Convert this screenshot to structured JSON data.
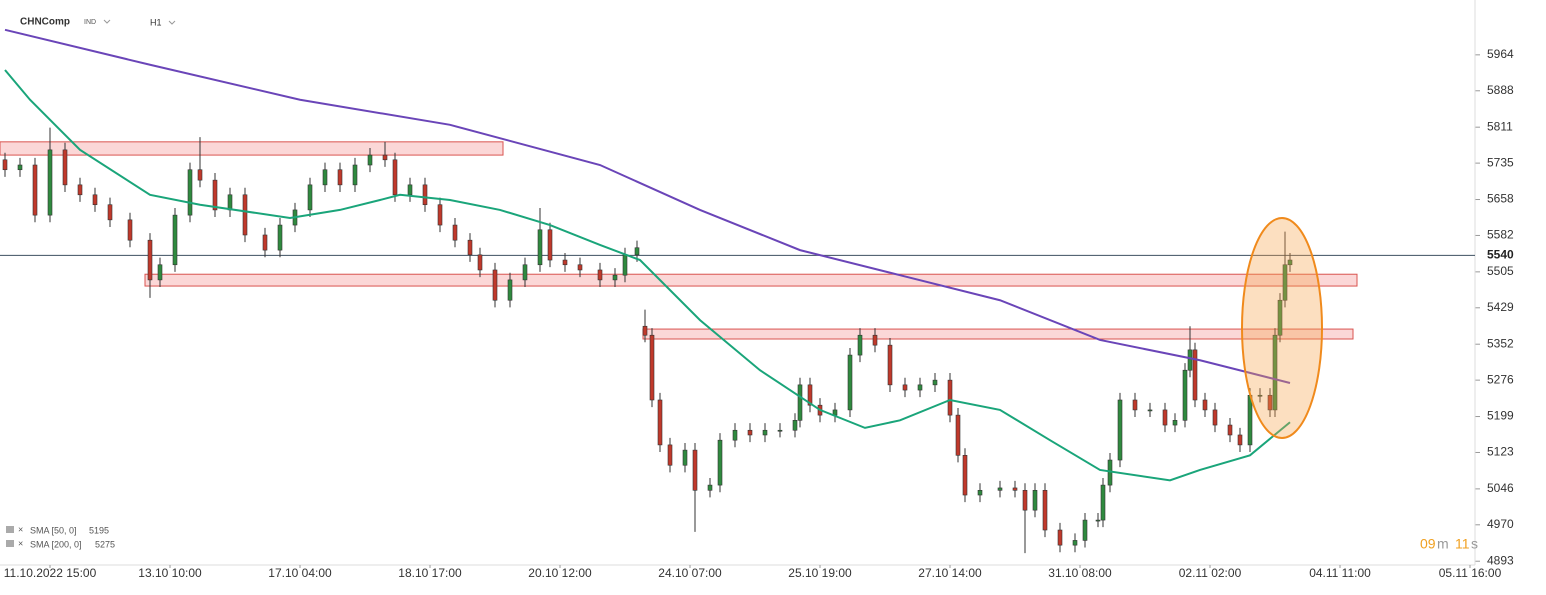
{
  "header": {
    "symbol": "CHNComp",
    "group": "IND",
    "interval": "H1"
  },
  "timer": {
    "minutes": "09",
    "minutes_unit": "m",
    "seconds": "11",
    "seconds_unit": "s"
  },
  "chart_data": {
    "type": "candlestick",
    "xlim": [
      0,
      295
    ],
    "ylim": [
      4885,
      6080
    ],
    "xticks": [
      {
        "value": 10,
        "label": "11.10.2022 15:00"
      },
      {
        "value": 34,
        "label": "13.10 10:00"
      },
      {
        "value": 60,
        "label": "17.10 04:00"
      },
      {
        "value": 86,
        "label": "18.10 17:00"
      },
      {
        "value": 112,
        "label": "20.10 12:00"
      },
      {
        "value": 138,
        "label": "24.10 07:00"
      },
      {
        "value": 164,
        "label": "25.10 19:00"
      },
      {
        "value": 190,
        "label": "27.10 14:00"
      },
      {
        "value": 216,
        "label": "31.10 08:00"
      },
      {
        "value": 242,
        "label": "02.11 02:00"
      },
      {
        "value": 268,
        "label": "04.11 11:00"
      },
      {
        "value": 294,
        "label": "05.11 16:00"
      }
    ],
    "yticks": [
      5964,
      5888,
      5811,
      5735,
      5658,
      5582,
      5505,
      5429,
      5352,
      5276,
      5199,
      5123,
      5046,
      4970,
      4893
    ],
    "up_color": "#2f8a3f",
    "down_color": "#c0392b",
    "candles": {
      "x": [
        1,
        4,
        7,
        10,
        13,
        16,
        19,
        22,
        26,
        30,
        32,
        35,
        38,
        40,
        43,
        46,
        49,
        53,
        56,
        59,
        62,
        65,
        68,
        71,
        74,
        77,
        79,
        82,
        85,
        88,
        91,
        94,
        96,
        99,
        102,
        105,
        108,
        110,
        113,
        116,
        120,
        123,
        125,
        127.4,
        129,
        130.4,
        132,
        134,
        137,
        139,
        142,
        144,
        147,
        150,
        153,
        156,
        159,
        160,
        162,
        164,
        167,
        170,
        172,
        175,
        178,
        181,
        184,
        187,
        190,
        191.6,
        193,
        196,
        200,
        203,
        205,
        207,
        209,
        212,
        215,
        217,
        219.6,
        220.6,
        222,
        224,
        227,
        230,
        233,
        235,
        237,
        238,
        239,
        241,
        243,
        246,
        248,
        250,
        252,
        254,
        255,
        256,
        257,
        258
      ],
      "open": [
        5742,
        5721,
        5731,
        5625,
        5763,
        5689,
        5668,
        5647,
        5615,
        5572,
        5488,
        5520,
        5625,
        5721,
        5699,
        5636,
        5668,
        5583,
        5551,
        5604,
        5636,
        5689,
        5721,
        5689,
        5731,
        5752,
        5742,
        5668,
        5689,
        5647,
        5604,
        5572,
        5541,
        5509,
        5445,
        5488,
        5520,
        5594,
        5530,
        5520,
        5509,
        5488,
        5498,
        5541,
        5390,
        5371,
        5234,
        5139,
        5096,
        5128,
        5043,
        5054,
        5149,
        5170,
        5160,
        5170,
        5170,
        5191,
        5266,
        5223,
        5202,
        5213,
        5329,
        5371,
        5350,
        5266,
        5255,
        5266,
        5276,
        5202,
        5117,
        5033,
        5043,
        5048,
        5043,
        5001,
        5043,
        4959,
        4927,
        4937,
        4980,
        4980,
        5054,
        5107,
        5234,
        5213,
        5213,
        5181,
        5191,
        5297,
        5340,
        5234,
        5213,
        5181,
        5160,
        5139,
        5244,
        5244,
        5213,
        5371,
        5445,
        5520
      ],
      "high": [
        5757,
        5746,
        5746,
        5810,
        5778,
        5704,
        5683,
        5662,
        5630,
        5587,
        5535,
        5640,
        5736,
        5790,
        5714,
        5683,
        5683,
        5598,
        5619,
        5651,
        5704,
        5736,
        5736,
        5746,
        5767,
        5780,
        5757,
        5704,
        5704,
        5662,
        5619,
        5587,
        5556,
        5524,
        5503,
        5535,
        5640,
        5609,
        5545,
        5535,
        5524,
        5513,
        5556,
        5571,
        5425,
        5386,
        5249,
        5154,
        5143,
        5143,
        5069,
        5164,
        5185,
        5185,
        5185,
        5185,
        5206,
        5281,
        5281,
        5238,
        5228,
        5344,
        5386,
        5386,
        5365,
        5281,
        5281,
        5291,
        5291,
        5217,
        5132,
        5058,
        5063,
        5063,
        5058,
        5058,
        5058,
        4974,
        4952,
        4995,
        4995,
        5069,
        5122,
        5249,
        5249,
        5228,
        5228,
        5206,
        5312,
        5390,
        5355,
        5249,
        5228,
        5196,
        5175,
        5259,
        5259,
        5259,
        5386,
        5460,
        5590,
        5545
      ],
      "low": [
        5706,
        5706,
        5610,
        5610,
        5674,
        5653,
        5632,
        5600,
        5557,
        5450,
        5473,
        5505,
        5610,
        5684,
        5621,
        5621,
        5568,
        5536,
        5536,
        5589,
        5621,
        5674,
        5674,
        5674,
        5716,
        5727,
        5653,
        5653,
        5632,
        5589,
        5557,
        5526,
        5494,
        5430,
        5430,
        5473,
        5505,
        5515,
        5505,
        5494,
        5473,
        5473,
        5483,
        5526,
        5356,
        5219,
        5124,
        5081,
        5081,
        4955,
        5028,
        5039,
        5134,
        5145,
        5145,
        5155,
        5155,
        5176,
        5208,
        5187,
        5187,
        5198,
        5314,
        5335,
        5251,
        5240,
        5240,
        5251,
        5187,
        5102,
        5018,
        5018,
        5028,
        5028,
        4910,
        4986,
        4944,
        4912,
        4912,
        4922,
        4965,
        4965,
        5039,
        5092,
        5198,
        5198,
        5166,
        5166,
        5176,
        5282,
        5219,
        5198,
        5166,
        5145,
        5124,
        5124,
        5229,
        5198,
        5198,
        5356,
        5430,
        5505
      ],
      "close": [
        5721,
        5731,
        5625,
        5763,
        5689,
        5668,
        5647,
        5615,
        5572,
        5488,
        5520,
        5625,
        5721,
        5699,
        5636,
        5668,
        5583,
        5551,
        5604,
        5636,
        5689,
        5721,
        5689,
        5731,
        5752,
        5742,
        5668,
        5689,
        5647,
        5604,
        5572,
        5541,
        5509,
        5445,
        5488,
        5520,
        5594,
        5530,
        5520,
        5509,
        5488,
        5498,
        5541,
        5556,
        5371,
        5234,
        5139,
        5096,
        5128,
        5043,
        5054,
        5149,
        5170,
        5160,
        5170,
        5170,
        5191,
        5266,
        5223,
        5202,
        5213,
        5329,
        5371,
        5350,
        5266,
        5255,
        5266,
        5276,
        5202,
        5117,
        5033,
        5043,
        5048,
        5043,
        5001,
        5043,
        4959,
        4927,
        4937,
        4980,
        4980,
        5054,
        5107,
        5234,
        5213,
        5213,
        5181,
        5191,
        5297,
        5340,
        5234,
        5213,
        5181,
        5160,
        5139,
        5244,
        5244,
        5213,
        5371,
        5445,
        5520,
        5530
      ]
    },
    "sma": [
      {
        "name": "SMA [50, 0]",
        "value": 5195,
        "color": "#1aa57a",
        "x": [
          1,
          6,
          16,
          30,
          40,
          58,
          68,
          76,
          80,
          90,
          100,
          110,
          120,
          128,
          140,
          152,
          164,
          173,
          180,
          190,
          200,
          210,
          220,
          234,
          240,
          250,
          258
        ],
        "values": [
          5932,
          5869,
          5763,
          5668,
          5647,
          5619,
          5636,
          5657,
          5668,
          5657,
          5636,
          5604,
          5562,
          5530,
          5403,
          5297,
          5213,
          5175,
          5191,
          5234,
          5213,
          5149,
          5086,
          5064,
          5086,
          5117,
          5187
        ]
      },
      {
        "name": "SMA [200, 0]",
        "value": 5275,
        "color": "#6a45b8",
        "x": [
          1,
          30,
          60,
          90,
          120,
          140,
          160,
          180,
          200,
          220,
          240,
          258
        ],
        "values": [
          6017,
          5943,
          5869,
          5816,
          5731,
          5636,
          5551,
          5498,
          5445,
          5361,
          5318,
          5270
        ]
      }
    ],
    "zones": [
      {
        "x": [
          0,
          100.6
        ],
        "y": [
          5752,
          5780
        ]
      },
      {
        "x": [
          29,
          271.4
        ],
        "y": [
          5475,
          5500
        ]
      },
      {
        "x": [
          128.6,
          270.6
        ],
        "y": [
          5363,
          5384
        ]
      }
    ],
    "last_price": 5540
  }
}
